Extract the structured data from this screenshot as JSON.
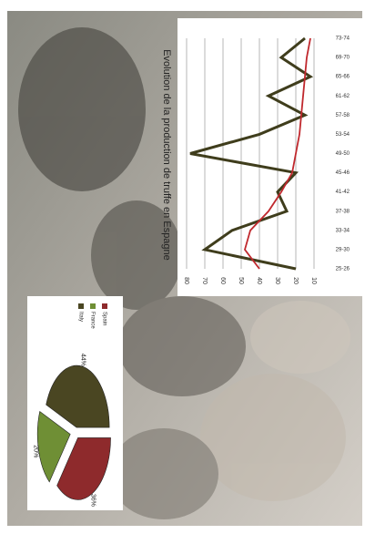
{
  "chart_data": [
    {
      "type": "line",
      "title": "Evolution de la production de truffe en Espagne",
      "categories": [
        "25-26",
        "29-30",
        "33-34",
        "37-38",
        "41-42",
        "45-46",
        "49-50",
        "53-54",
        "57-58",
        "61-62",
        "65-66",
        "69-70",
        "73-74"
      ],
      "series": [
        {
          "color": "#3f3d1c",
          "values": [
            20,
            70,
            55,
            25,
            30,
            20,
            78,
            40,
            15,
            35,
            12,
            28,
            15
          ]
        },
        {
          "color": "#c0282d",
          "values": [
            40,
            48,
            45,
            35,
            28,
            22,
            20,
            18,
            17,
            16,
            15,
            14,
            12
          ]
        }
      ],
      "ylim": [
        0,
        80
      ],
      "yticks": [
        10,
        20,
        30,
        40,
        50,
        60,
        70,
        80
      ],
      "grid": true
    },
    {
      "type": "pie",
      "categories": [
        "Spain",
        "France",
        "Italy"
      ],
      "values": [
        36,
        20,
        44
      ],
      "value_labels": [
        "36%",
        "20%",
        "44%"
      ],
      "colors": [
        "#8e2a2c",
        "#6f8f35",
        "#4a4622"
      ]
    }
  ]
}
